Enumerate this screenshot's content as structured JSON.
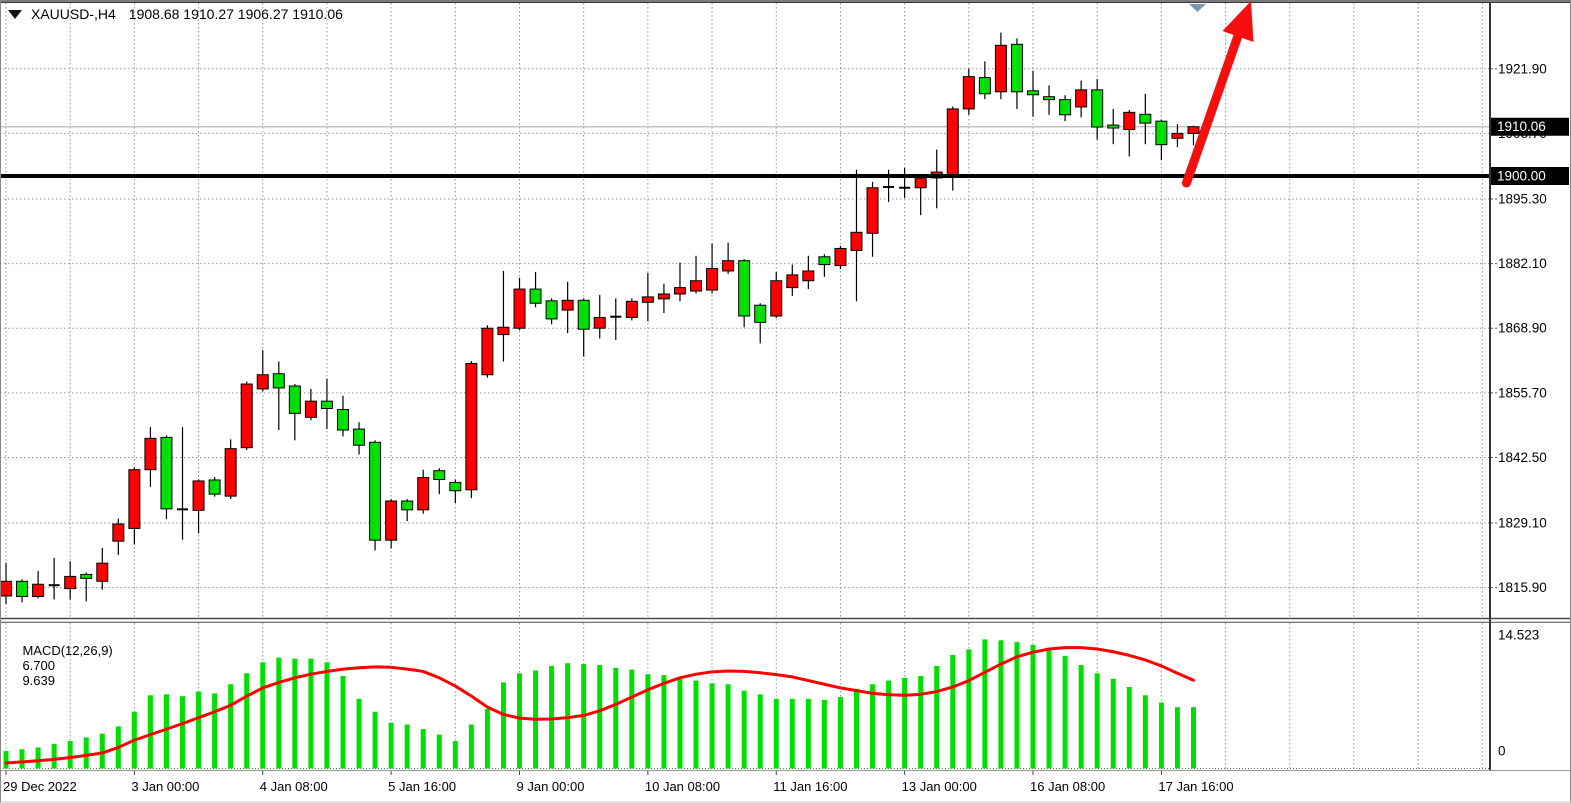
{
  "window": {
    "symbol": "XAUUSD-,H4",
    "ohlc_display": "1908.68 1910.27 1906.27 1910.06"
  },
  "colors": {
    "up_candle": "#ff0000",
    "down_candle": "#00e000",
    "candle_border": "#000000",
    "wick": "#000000",
    "grid": "#8696aa",
    "support_line": "#000000",
    "current_price_line": "#b6b6be",
    "badge_bg": "#000000",
    "badge_text": "#ffffff",
    "macd_bar": "#00e000",
    "macd_signal": "#ff0000",
    "arrow": "#f50f0f",
    "scroll_marker": "#7e96ad",
    "axis_text": "#000000"
  },
  "chart_data": {
    "type": "candlestick",
    "title": "XAUUSD-,H4",
    "timeframe": "H4",
    "current_bar": {
      "open": 1908.68,
      "high": 1910.27,
      "low": 1906.27,
      "close": 1910.06
    },
    "price_axis": {
      "ticks": [
        "1921.90",
        "1908.70",
        "1895.30",
        "1882.10",
        "1868.90",
        "1855.70",
        "1842.50",
        "1829.10",
        "1815.90"
      ],
      "tick_values": [
        1921.9,
        1908.7,
        1895.3,
        1882.1,
        1868.9,
        1855.7,
        1842.5,
        1829.1,
        1815.9
      ],
      "badges": [
        {
          "label": "1910.06",
          "value": 1910.06
        },
        {
          "label": "1900.00",
          "value": 1900.0
        }
      ]
    },
    "time_axis": {
      "labels": [
        "29 Dec 2022",
        "3 Jan 00:00",
        "4 Jan 08:00",
        "5 Jan 16:00",
        "9 Jan 00:00",
        "10 Jan 08:00",
        "11 Jan 16:00",
        "13 Jan 00:00",
        "16 Jan 08:00",
        "17 Jan 16:00"
      ],
      "label_bars": [
        0,
        8,
        16,
        24,
        32,
        40,
        48,
        56,
        64,
        72
      ]
    },
    "levels": {
      "support_line": 1900.0,
      "current_price": 1910.06
    },
    "candles": [
      [
        1814.2,
        1821.0,
        1812.5,
        1817.2
      ],
      [
        1817.2,
        1817.6,
        1812.9,
        1814.1
      ],
      [
        1814.1,
        1819.3,
        1813.7,
        1816.6
      ],
      [
        1816.3,
        1822.0,
        1813.5,
        1816.5
      ],
      [
        1815.7,
        1821.3,
        1813.5,
        1818.2
      ],
      [
        1818.6,
        1819.0,
        1813.1,
        1817.8
      ],
      [
        1817.2,
        1824.0,
        1815.5,
        1820.9
      ],
      [
        1825.4,
        1830.0,
        1822.6,
        1828.9
      ],
      [
        1828.0,
        1840.5,
        1824.7,
        1840.0
      ],
      [
        1840.0,
        1848.7,
        1836.5,
        1846.4
      ],
      [
        1846.6,
        1847.0,
        1829.9,
        1832.0
      ],
      [
        1832.0,
        1848.7,
        1825.7,
        1831.8
      ],
      [
        1831.7,
        1838.0,
        1827.0,
        1837.7
      ],
      [
        1837.9,
        1838.5,
        1834.5,
        1835.0
      ],
      [
        1834.6,
        1846.2,
        1834.0,
        1844.3
      ],
      [
        1844.5,
        1858.0,
        1844.0,
        1857.5
      ],
      [
        1856.5,
        1864.4,
        1856.0,
        1859.4
      ],
      [
        1859.6,
        1862.1,
        1848.1,
        1856.7
      ],
      [
        1857.1,
        1857.5,
        1846.0,
        1851.5
      ],
      [
        1850.7,
        1856.5,
        1850.1,
        1854.0
      ],
      [
        1854.0,
        1858.6,
        1848.3,
        1852.5
      ],
      [
        1852.3,
        1855.1,
        1846.8,
        1848.1
      ],
      [
        1848.3,
        1849.7,
        1843.1,
        1845.0
      ],
      [
        1845.6,
        1846.0,
        1823.5,
        1825.6
      ],
      [
        1825.6,
        1834.0,
        1823.9,
        1833.6
      ],
      [
        1833.6,
        1834.0,
        1829.5,
        1831.8
      ],
      [
        1831.8,
        1840.0,
        1831.0,
        1838.4
      ],
      [
        1839.8,
        1840.3,
        1835.0,
        1838.0
      ],
      [
        1837.4,
        1838.0,
        1833.2,
        1835.7
      ],
      [
        1835.9,
        1862.2,
        1834.2,
        1861.7
      ],
      [
        1859.4,
        1869.5,
        1858.8,
        1868.9
      ],
      [
        1867.6,
        1880.6,
        1862.1,
        1869.1
      ],
      [
        1868.9,
        1879.2,
        1868.5,
        1876.9
      ],
      [
        1876.9,
        1880.4,
        1873.2,
        1874.0
      ],
      [
        1874.5,
        1875.0,
        1869.7,
        1870.8
      ],
      [
        1872.6,
        1878.4,
        1867.9,
        1874.6
      ],
      [
        1874.6,
        1875.0,
        1863.1,
        1868.7
      ],
      [
        1868.9,
        1875.7,
        1866.8,
        1871.1
      ],
      [
        1871.0,
        1875.0,
        1866.5,
        1871.5
      ],
      [
        1871.1,
        1875.0,
        1870.5,
        1874.4
      ],
      [
        1874.2,
        1880.2,
        1870.3,
        1875.3
      ],
      [
        1874.9,
        1878.0,
        1872.0,
        1875.9
      ],
      [
        1875.9,
        1882.3,
        1874.4,
        1877.2
      ],
      [
        1876.5,
        1883.7,
        1876.0,
        1878.6
      ],
      [
        1876.7,
        1886.2,
        1876.0,
        1881.1
      ],
      [
        1880.6,
        1886.4,
        1880.0,
        1882.7
      ],
      [
        1882.7,
        1883.0,
        1869.1,
        1871.4
      ],
      [
        1873.6,
        1874.0,
        1865.8,
        1870.1
      ],
      [
        1871.4,
        1880.4,
        1871.0,
        1878.6
      ],
      [
        1877.2,
        1881.9,
        1875.5,
        1879.8
      ],
      [
        1878.6,
        1883.7,
        1876.9,
        1880.6
      ],
      [
        1883.5,
        1884.0,
        1879.4,
        1881.9
      ],
      [
        1881.7,
        1885.7,
        1881.0,
        1885.2
      ],
      [
        1884.8,
        1901.3,
        1874.4,
        1888.5
      ],
      [
        1888.3,
        1898.8,
        1883.5,
        1897.6
      ],
      [
        1897.5,
        1901.3,
        1894.7,
        1898.0
      ],
      [
        1897.4,
        1901.7,
        1895.5,
        1897.8
      ],
      [
        1897.6,
        1900.2,
        1892.0,
        1899.6
      ],
      [
        1899.6,
        1905.4,
        1893.4,
        1900.8
      ],
      [
        1900.3,
        1914.2,
        1897.0,
        1913.7
      ],
      [
        1913.7,
        1921.9,
        1912.5,
        1920.3
      ],
      [
        1920.1,
        1923.4,
        1915.7,
        1916.8
      ],
      [
        1917.2,
        1929.3,
        1915.7,
        1926.7
      ],
      [
        1926.9,
        1928.1,
        1913.7,
        1917.2
      ],
      [
        1917.4,
        1921.5,
        1912.1,
        1916.6
      ],
      [
        1916.2,
        1918.5,
        1912.5,
        1915.6
      ],
      [
        1915.6,
        1916.5,
        1911.2,
        1912.5
      ],
      [
        1914.1,
        1919.5,
        1912.0,
        1917.6
      ],
      [
        1917.6,
        1919.8,
        1907.4,
        1910.0
      ],
      [
        1910.4,
        1913.7,
        1906.5,
        1909.8
      ],
      [
        1909.5,
        1913.5,
        1904.0,
        1913.0
      ],
      [
        1912.6,
        1916.8,
        1906.5,
        1910.8
      ],
      [
        1911.2,
        1911.5,
        1903.3,
        1906.4
      ],
      [
        1907.7,
        1910.6,
        1905.9,
        1908.7
      ],
      [
        1908.68,
        1910.27,
        1906.27,
        1910.06
      ]
    ],
    "macd": {
      "label": "MACD(12,26,9)",
      "main_value": "6.700",
      "signal_value": "9.639",
      "axis_max": "14.523",
      "axis_min": "0",
      "histogram": [
        1.9,
        2.1,
        2.3,
        2.7,
        3.0,
        3.4,
        3.8,
        4.6,
        6.2,
        8.0,
        8.1,
        7.9,
        8.4,
        8.2,
        9.2,
        10.4,
        11.6,
        12.1,
        12.0,
        12.0,
        11.6,
        10.1,
        7.6,
        6.2,
        5.0,
        4.8,
        4.3,
        3.7,
        3.0,
        4.8,
        6.5,
        9.4,
        10.4,
        10.7,
        11.2,
        11.5,
        11.4,
        11.3,
        11.0,
        10.8,
        10.3,
        10.2,
        9.8,
        9.6,
        9.3,
        9.2,
        8.5,
        8.1,
        7.6,
        7.6,
        7.6,
        7.5,
        7.8,
        8.7,
        9.2,
        9.6,
        9.9,
        10.1,
        11.2,
        12.4,
        13.0,
        14.1,
        14.0,
        13.8,
        13.5,
        12.9,
        12.3,
        11.3,
        10.4,
        9.8,
        8.9,
        8.0,
        7.2,
        6.7,
        6.7
      ],
      "signal": [
        0.6,
        0.72,
        0.85,
        1.0,
        1.2,
        1.43,
        1.7,
        2.3,
        3.1,
        3.7,
        4.3,
        4.9,
        5.55,
        6.2,
        6.9,
        7.9,
        8.8,
        9.4,
        9.9,
        10.3,
        10.6,
        10.85,
        11.0,
        11.1,
        11.05,
        10.85,
        10.6,
        9.9,
        9.0,
        7.9,
        6.7,
        5.9,
        5.5,
        5.38,
        5.4,
        5.55,
        5.8,
        6.3,
        7.0,
        7.8,
        8.6,
        9.3,
        9.9,
        10.3,
        10.55,
        10.65,
        10.6,
        10.45,
        10.25,
        10.0,
        9.6,
        9.2,
        8.8,
        8.5,
        8.2,
        8.05,
        8.0,
        8.1,
        8.4,
        8.9,
        9.6,
        10.5,
        11.4,
        12.2,
        12.7,
        13.05,
        13.2,
        13.2,
        13.05,
        12.75,
        12.35,
        11.85,
        11.2,
        10.4,
        9.639
      ]
    }
  },
  "annotations": {
    "trend_arrow": {
      "type": "up-arrow",
      "from_bar": 73,
      "direction": "up-right"
    },
    "scroll_marker": "chart-end-triangle"
  }
}
